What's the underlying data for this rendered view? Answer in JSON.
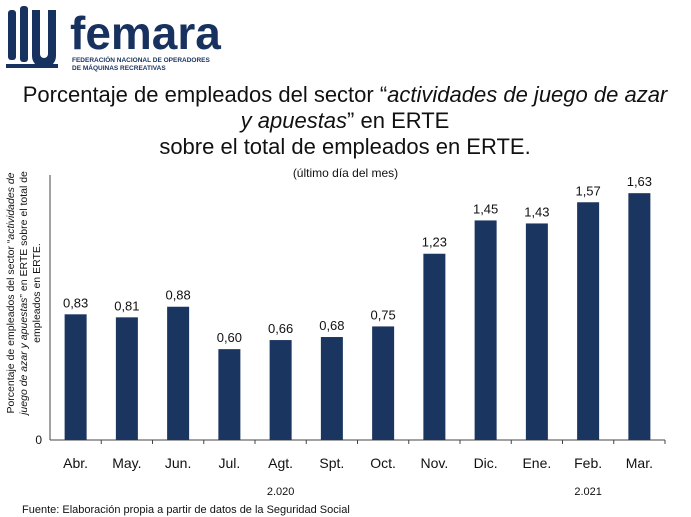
{
  "logo": {
    "wordmark": "femara",
    "subtitle_line1": "FEDERACIÓN NACIONAL DE OPERADORES",
    "subtitle_line2": "DE MÁQUINAS RECREATIVAS",
    "brand_color": "#17325e"
  },
  "header": {
    "title_part1": "Porcentaje de empleados del sector “",
    "title_italic": "actividades de juego de azar y apuestas",
    "title_part2": "” en ERTE",
    "title_line3": "sobre el total de empleados en ERTE.",
    "subtitle": "(último día del mes)"
  },
  "chart_data": {
    "type": "bar",
    "categories": [
      "Abr.",
      "May.",
      "Jun.",
      "Jul.",
      "Agt.",
      "Spt.",
      "Oct.",
      "Nov.",
      "Dic.",
      "Ene.",
      "Feb.",
      "Mar."
    ],
    "values": [
      0.83,
      0.81,
      0.88,
      0.6,
      0.66,
      0.68,
      0.75,
      1.23,
      1.45,
      1.43,
      1.57,
      1.63
    ],
    "value_labels": [
      "0,83",
      "0,81",
      "0,88",
      "0,60",
      "0,66",
      "0,68",
      "0,75",
      "1,23",
      "1,45",
      "1,43",
      "1,57",
      "1,63"
    ],
    "year_groups": [
      {
        "label": "2.020",
        "from": "Abr.",
        "to": "Dic."
      },
      {
        "label": "2.021",
        "from": "Ene.",
        "to": "Mar."
      }
    ],
    "ylabel_part1": "Porcentaje de empleados del sector “",
    "ylabel_italic": "actividades de juego de azar y apuestas",
    "ylabel_part2": "” en ERTE sobre el total de empleados en ERTE.",
    "y_tick_labels": [
      "0"
    ],
    "ylim": [
      0,
      1.75
    ],
    "bar_color": "#1a3560",
    "grid": false,
    "legend": "none"
  },
  "footer": {
    "source": "Fuente: Elaboración propia a partir de datos de la Seguridad Social"
  }
}
